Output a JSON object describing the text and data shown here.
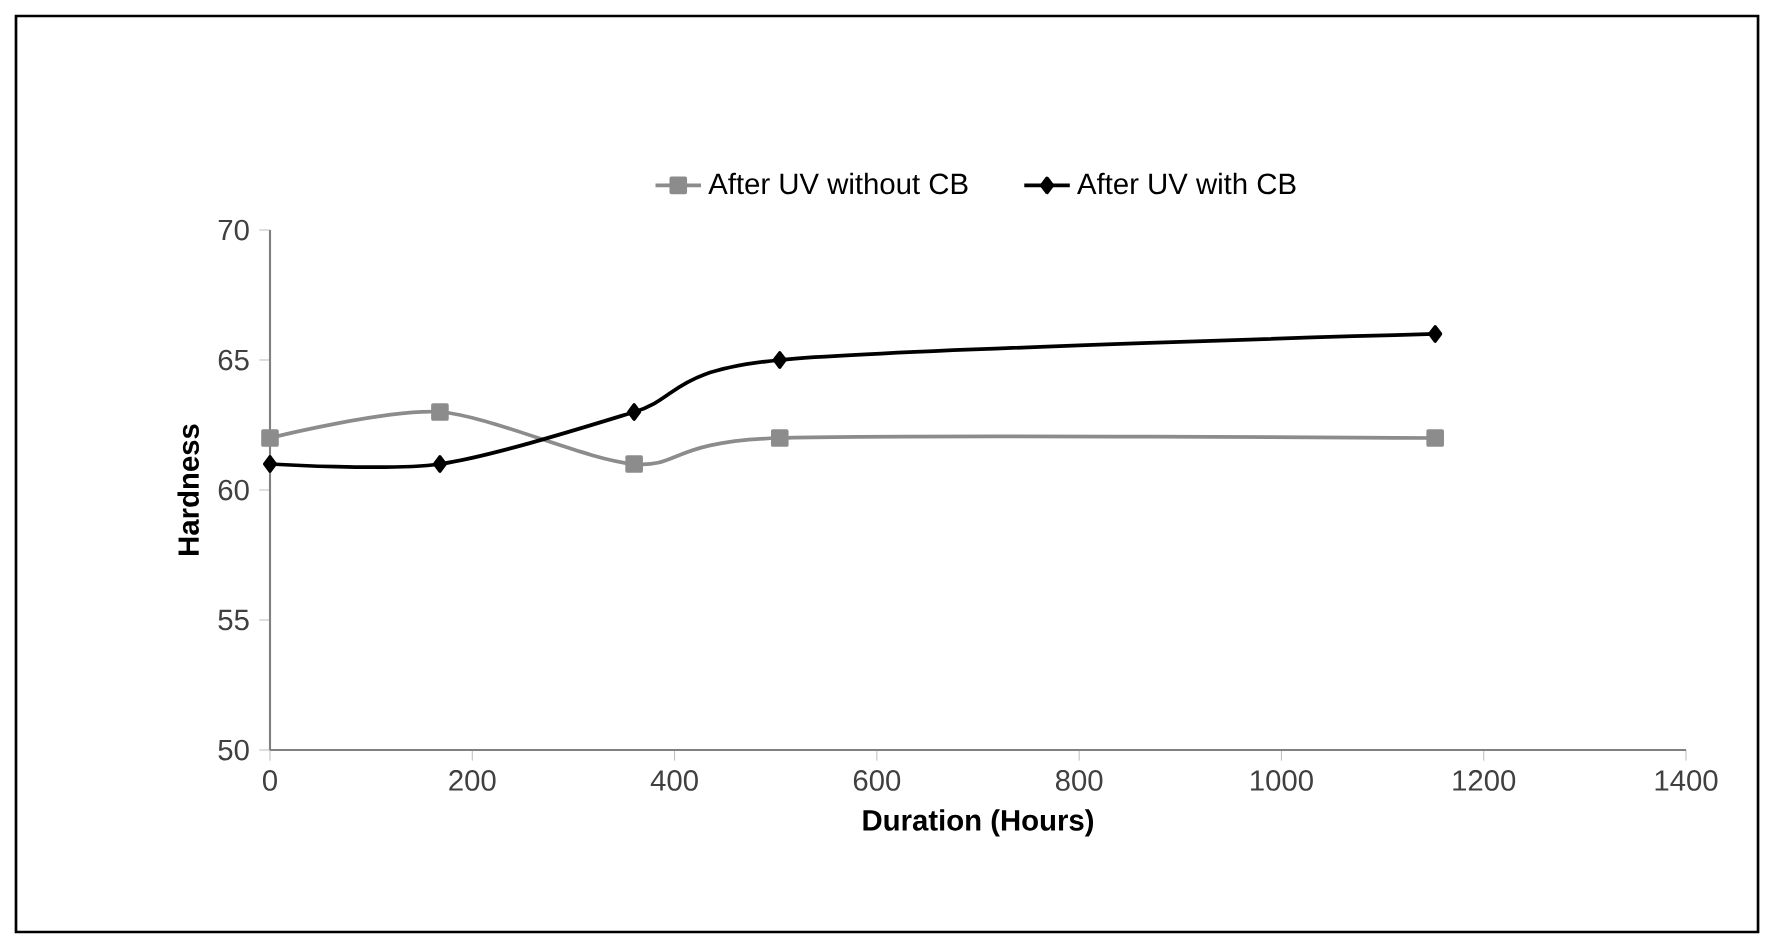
{
  "chart_data": {
    "type": "line",
    "xlabel": "Duration (Hours)",
    "ylabel": "Hardness",
    "x": [
      0,
      168,
      360,
      504,
      1152
    ],
    "series": [
      {
        "name": "After UV without CB",
        "color": "#8c8c8c",
        "marker": "square",
        "values": [
          62,
          63,
          61,
          62,
          62
        ]
      },
      {
        "name": "After UV with CB",
        "color": "#000000",
        "marker": "diamond",
        "values": [
          61,
          61,
          63,
          65,
          66
        ]
      }
    ],
    "xlim": [
      0,
      1400
    ],
    "xticks": [
      0,
      200,
      400,
      600,
      800,
      1000,
      1200,
      1400
    ],
    "ylim": [
      50,
      70
    ],
    "yticks": [
      50,
      55,
      60,
      65,
      70
    ],
    "grid": false,
    "legend": "top",
    "line_style": "solid"
  }
}
